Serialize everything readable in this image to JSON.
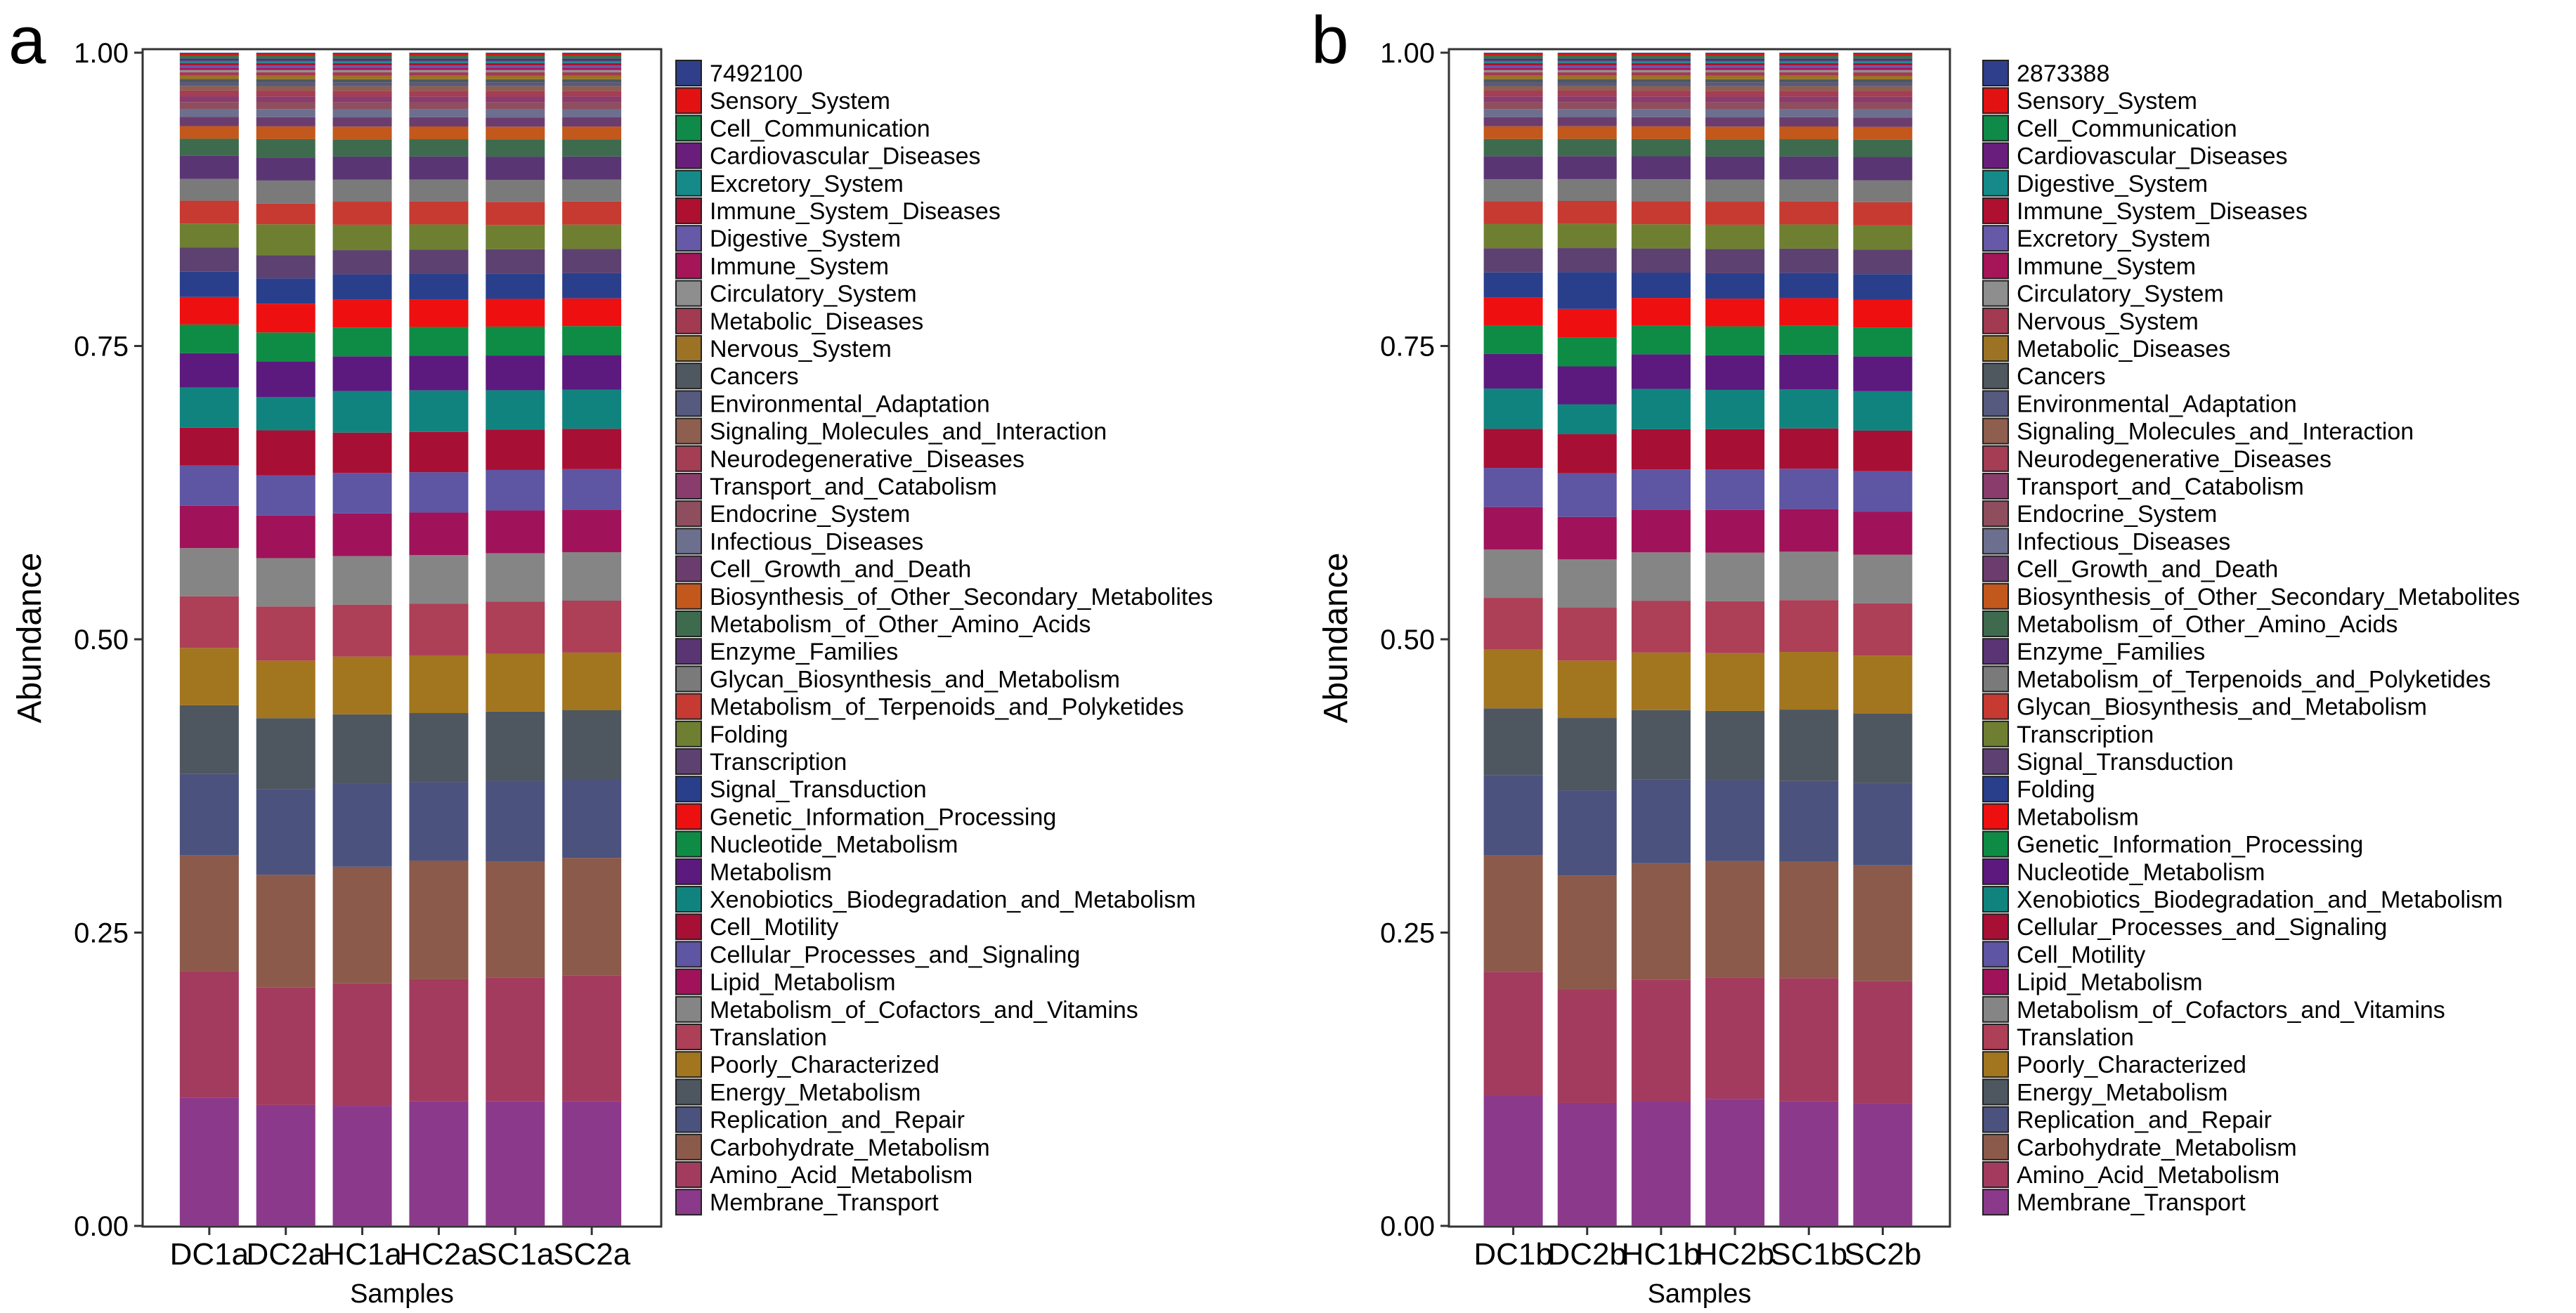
{
  "colors": [
    "#8B3A8B",
    "#A33B5E",
    "#8B5A4A",
    "#4B527E",
    "#4E5760",
    "#A2751F",
    "#AD3F57",
    "#858585",
    "#A0135A",
    "#5E55A3",
    "#A80F34",
    "#11837E",
    "#5C1A7E",
    "#0E8C45",
    "#EE1010",
    "#293F8C",
    "#5D4170",
    "#6E7F32",
    "#C63A32",
    "#7A7A7A",
    "#5A3574",
    "#3E6B4E",
    "#C2581C",
    "#6B3D6E",
    "#6C6F8E",
    "#8F4E5E",
    "#8A3C6C",
    "#A33E55",
    "#8E5E4E",
    "#565A7E",
    "#4F575F",
    "#9C7225",
    "#A23B51",
    "#8E8E8E",
    "#A51558",
    "#6559A8",
    "#B01030",
    "#158A88",
    "#6A1E7C",
    "#0F8A48",
    "#E31212",
    "#2F3F8A"
  ],
  "chart_data": [
    {
      "panel_label": "a",
      "type": "bar",
      "stacked": true,
      "xlabel": "Samples",
      "ylabel": "Abundance",
      "ylim": [
        0,
        1
      ],
      "yticks": [
        "0.00",
        "0.25",
        "0.50",
        "0.75",
        "1.00"
      ],
      "categories": [
        "DC1a",
        "DC2a",
        "HC1a",
        "HC2a",
        "SC1a",
        "SC2a"
      ],
      "series": [
        {
          "name": "Membrane_Transport",
          "values": [
            0.112,
            0.105,
            0.104,
            0.108,
            0.108,
            0.108
          ]
        },
        {
          "name": "Amino_Acid_Metabolism",
          "values": [
            0.11,
            0.102,
            0.106,
            0.106,
            0.107,
            0.109
          ]
        },
        {
          "name": "Carbohydrate_Metabolism",
          "values": [
            0.101,
            0.098,
            0.101,
            0.103,
            0.1,
            0.102
          ]
        },
        {
          "name": "Replication_and_Repair",
          "values": [
            0.071,
            0.074,
            0.072,
            0.068,
            0.07,
            0.068
          ]
        },
        {
          "name": "Energy_Metabolism",
          "values": [
            0.06,
            0.062,
            0.06,
            0.06,
            0.06,
            0.06
          ]
        },
        {
          "name": "Poorly_Characterized",
          "values": [
            0.05,
            0.05,
            0.05,
            0.05,
            0.05,
            0.05
          ]
        },
        {
          "name": "Translation",
          "values": [
            0.045,
            0.047,
            0.045,
            0.045,
            0.045,
            0.045
          ]
        },
        {
          "name": "Metabolism_of_Cofactors_and_Vitamins",
          "values": [
            0.042,
            0.042,
            0.042,
            0.042,
            0.042,
            0.042
          ]
        },
        {
          "name": "Lipid_Metabolism",
          "values": [
            0.037,
            0.037,
            0.037,
            0.037,
            0.037,
            0.037
          ]
        },
        {
          "name": "Cellular_Processes_and_Signaling",
          "values": [
            0.035,
            0.035,
            0.035,
            0.035,
            0.035,
            0.035
          ]
        },
        {
          "name": "Cell_Motility",
          "values": [
            0.033,
            0.039,
            0.035,
            0.035,
            0.035,
            0.035
          ]
        },
        {
          "name": "Xenobiotics_Biodegradation_and_Metabolism",
          "values": [
            0.035,
            0.029,
            0.036,
            0.036,
            0.034,
            0.034
          ]
        },
        {
          "name": "Metabolism",
          "values": [
            0.03,
            0.031,
            0.03,
            0.03,
            0.03,
            0.03
          ]
        },
        {
          "name": "Nucleotide_Metabolism",
          "values": [
            0.025,
            0.025,
            0.025,
            0.025,
            0.025,
            0.025
          ]
        },
        {
          "name": "Genetic_Information_Processing",
          "values": [
            0.024,
            0.025,
            0.024,
            0.024,
            0.024,
            0.024
          ]
        },
        {
          "name": "Signal_Transduction",
          "values": [
            0.022,
            0.022,
            0.022,
            0.022,
            0.022,
            0.022
          ]
        },
        {
          "name": "Transcription",
          "values": [
            0.021,
            0.02,
            0.021,
            0.021,
            0.021,
            0.021
          ]
        },
        {
          "name": "Folding",
          "values": [
            0.021,
            0.027,
            0.022,
            0.022,
            0.021,
            0.021
          ]
        },
        {
          "name": "Metabolism_of_Terpenoids_and_Polyketides",
          "values": [
            0.02,
            0.018,
            0.02,
            0.02,
            0.02,
            0.02
          ]
        },
        {
          "name": "Glycan_Biosynthesis_and_Metabolism",
          "values": [
            0.019,
            0.02,
            0.019,
            0.019,
            0.019,
            0.019
          ]
        },
        {
          "name": "Enzyme_Families",
          "values": [
            0.02,
            0.02,
            0.02,
            0.02,
            0.02,
            0.02
          ]
        },
        {
          "name": "Metabolism_of_Other_Amino_Acids",
          "values": [
            0.015,
            0.016,
            0.015,
            0.015,
            0.015,
            0.015
          ]
        },
        {
          "name": "Biosynthesis_of_Other_Secondary_Metabolites",
          "values": [
            0.011,
            0.011,
            0.011,
            0.011,
            0.011,
            0.011
          ]
        },
        {
          "name": "Cell_Growth_and_Death",
          "values": [
            0.008,
            0.008,
            0.008,
            0.008,
            0.008,
            0.008
          ]
        },
        {
          "name": "Infectious_Diseases",
          "values": [
            0.007,
            0.007,
            0.007,
            0.007,
            0.007,
            0.007
          ]
        },
        {
          "name": "Endocrine_System",
          "values": [
            0.006,
            0.006,
            0.006,
            0.006,
            0.006,
            0.006
          ]
        },
        {
          "name": "Transport_and_Catabolism",
          "values": [
            0.005,
            0.005,
            0.005,
            0.005,
            0.005,
            0.005
          ]
        },
        {
          "name": "Neurodegenerative_Diseases",
          "values": [
            0.005,
            0.005,
            0.005,
            0.005,
            0.005,
            0.005
          ]
        },
        {
          "name": "Signaling_Molecules_and_Interaction",
          "values": [
            0.004,
            0.004,
            0.004,
            0.004,
            0.004,
            0.004
          ]
        },
        {
          "name": "Environmental_Adaptation",
          "values": [
            0.003,
            0.003,
            0.003,
            0.003,
            0.003,
            0.003
          ]
        },
        {
          "name": "Cancers",
          "values": [
            0.003,
            0.003,
            0.003,
            0.003,
            0.003,
            0.003
          ]
        },
        {
          "name": "Nervous_System",
          "values": [
            0.003,
            0.003,
            0.003,
            0.003,
            0.003,
            0.003
          ]
        },
        {
          "name": "Metabolic_Diseases",
          "values": [
            0.003,
            0.003,
            0.003,
            0.003,
            0.003,
            0.003
          ]
        },
        {
          "name": "Circulatory_System",
          "values": [
            0.002,
            0.002,
            0.002,
            0.002,
            0.002,
            0.002
          ]
        },
        {
          "name": "Immune_System",
          "values": [
            0.002,
            0.002,
            0.002,
            0.002,
            0.002,
            0.002
          ]
        },
        {
          "name": "Digestive_System",
          "values": [
            0.002,
            0.002,
            0.002,
            0.002,
            0.002,
            0.002
          ]
        },
        {
          "name": "Immune_System_Diseases",
          "values": [
            0.002,
            0.002,
            0.002,
            0.002,
            0.002,
            0.002
          ]
        },
        {
          "name": "Excretory_System",
          "values": [
            0.002,
            0.002,
            0.002,
            0.002,
            0.002,
            0.002
          ]
        },
        {
          "name": "Cardiovascular_Diseases",
          "values": [
            0.002,
            0.002,
            0.002,
            0.002,
            0.002,
            0.002
          ]
        },
        {
          "name": "Cell_Communication",
          "values": [
            0.002,
            0.002,
            0.002,
            0.002,
            0.002,
            0.002
          ]
        },
        {
          "name": "Sensory_System",
          "values": [
            0.002,
            0.002,
            0.002,
            0.002,
            0.002,
            0.002
          ]
        },
        {
          "name": "7492100",
          "values": [
            0.001,
            0.001,
            0.001,
            0.001,
            0.001,
            0.001
          ]
        }
      ]
    },
    {
      "panel_label": "b",
      "type": "bar",
      "stacked": true,
      "xlabel": "Samples",
      "ylabel": "Abundance",
      "ylim": [
        0,
        1
      ],
      "yticks": [
        "0.00",
        "0.25",
        "0.50",
        "0.75",
        "1.00"
      ],
      "categories": [
        "DC1b",
        "DC2b",
        "HC1b",
        "HC2b",
        "SC1b",
        "SC2b"
      ],
      "series": [
        {
          "name": "Membrane_Transport",
          "values": [
            0.113,
            0.107,
            0.108,
            0.11,
            0.108,
            0.106
          ]
        },
        {
          "name": "Amino_Acid_Metabolism",
          "values": [
            0.108,
            0.099,
            0.106,
            0.105,
            0.107,
            0.105
          ]
        },
        {
          "name": "Carbohydrate_Metabolism",
          "values": [
            0.101,
            0.099,
            0.101,
            0.101,
            0.101,
            0.1
          ]
        },
        {
          "name": "Replication_and_Repair",
          "values": [
            0.07,
            0.074,
            0.073,
            0.07,
            0.07,
            0.071
          ]
        },
        {
          "name": "Energy_Metabolism",
          "values": [
            0.058,
            0.063,
            0.06,
            0.06,
            0.062,
            0.06
          ]
        },
        {
          "name": "Poorly_Characterized",
          "values": [
            0.051,
            0.05,
            0.05,
            0.05,
            0.05,
            0.05
          ]
        },
        {
          "name": "Translation",
          "values": [
            0.045,
            0.046,
            0.045,
            0.045,
            0.045,
            0.045
          ]
        },
        {
          "name": "Metabolism_of_Cofactors_and_Vitamins",
          "values": [
            0.042,
            0.042,
            0.042,
            0.042,
            0.042,
            0.042
          ]
        },
        {
          "name": "Lipid_Metabolism",
          "values": [
            0.037,
            0.037,
            0.037,
            0.037,
            0.037,
            0.037
          ]
        },
        {
          "name": "Cell_Motility",
          "values": [
            0.034,
            0.038,
            0.035,
            0.035,
            0.035,
            0.035
          ]
        },
        {
          "name": "Cellular_Processes_and_Signaling",
          "values": [
            0.034,
            0.034,
            0.035,
            0.035,
            0.035,
            0.035
          ]
        },
        {
          "name": "Xenobiotics_Biodegradation_and_Metabolism",
          "values": [
            0.035,
            0.026,
            0.035,
            0.034,
            0.034,
            0.034
          ]
        },
        {
          "name": "Nucleotide_Metabolism",
          "values": [
            0.03,
            0.033,
            0.03,
            0.03,
            0.03,
            0.03
          ]
        },
        {
          "name": "Genetic_Information_Processing",
          "values": [
            0.025,
            0.025,
            0.025,
            0.025,
            0.025,
            0.025
          ]
        },
        {
          "name": "Metabolism",
          "values": [
            0.024,
            0.025,
            0.024,
            0.024,
            0.024,
            0.024
          ]
        },
        {
          "name": "Folding",
          "values": [
            0.022,
            0.032,
            0.022,
            0.022,
            0.022,
            0.022
          ]
        },
        {
          "name": "Signal_Transduction",
          "values": [
            0.021,
            0.021,
            0.021,
            0.021,
            0.021,
            0.021
          ]
        },
        {
          "name": "Transcription",
          "values": [
            0.021,
            0.021,
            0.021,
            0.021,
            0.021,
            0.021
          ]
        },
        {
          "name": "Glycan_Biosynthesis_and_Metabolism",
          "values": [
            0.02,
            0.02,
            0.02,
            0.02,
            0.02,
            0.02
          ]
        },
        {
          "name": "Metabolism_of_Terpenoids_and_Polyketides",
          "values": [
            0.019,
            0.019,
            0.019,
            0.019,
            0.019,
            0.019
          ]
        },
        {
          "name": "Enzyme_Families",
          "values": [
            0.02,
            0.02,
            0.02,
            0.02,
            0.02,
            0.02
          ]
        },
        {
          "name": "Metabolism_of_Other_Amino_Acids",
          "values": [
            0.015,
            0.015,
            0.015,
            0.015,
            0.015,
            0.015
          ]
        },
        {
          "name": "Biosynthesis_of_Other_Secondary_Metabolites",
          "values": [
            0.011,
            0.011,
            0.011,
            0.011,
            0.011,
            0.011
          ]
        },
        {
          "name": "Cell_Growth_and_Death",
          "values": [
            0.008,
            0.008,
            0.008,
            0.008,
            0.008,
            0.008
          ]
        },
        {
          "name": "Infectious_Diseases",
          "values": [
            0.007,
            0.007,
            0.007,
            0.007,
            0.007,
            0.007
          ]
        },
        {
          "name": "Endocrine_System",
          "values": [
            0.006,
            0.006,
            0.006,
            0.006,
            0.006,
            0.006
          ]
        },
        {
          "name": "Transport_and_Catabolism",
          "values": [
            0.005,
            0.005,
            0.005,
            0.005,
            0.005,
            0.005
          ]
        },
        {
          "name": "Neurodegenerative_Diseases",
          "values": [
            0.005,
            0.005,
            0.005,
            0.005,
            0.005,
            0.005
          ]
        },
        {
          "name": "Signaling_Molecules_and_Interaction",
          "values": [
            0.004,
            0.004,
            0.004,
            0.004,
            0.004,
            0.004
          ]
        },
        {
          "name": "Environmental_Adaptation",
          "values": [
            0.003,
            0.003,
            0.003,
            0.003,
            0.003,
            0.003
          ]
        },
        {
          "name": "Cancers",
          "values": [
            0.003,
            0.003,
            0.003,
            0.003,
            0.003,
            0.003
          ]
        },
        {
          "name": "Metabolic_Diseases",
          "values": [
            0.003,
            0.003,
            0.003,
            0.003,
            0.003,
            0.003
          ]
        },
        {
          "name": "Nervous_System",
          "values": [
            0.003,
            0.003,
            0.003,
            0.003,
            0.003,
            0.003
          ]
        },
        {
          "name": "Circulatory_System",
          "values": [
            0.002,
            0.002,
            0.002,
            0.002,
            0.002,
            0.002
          ]
        },
        {
          "name": "Immune_System",
          "values": [
            0.002,
            0.002,
            0.002,
            0.002,
            0.002,
            0.002
          ]
        },
        {
          "name": "Excretory_System",
          "values": [
            0.002,
            0.002,
            0.002,
            0.002,
            0.002,
            0.002
          ]
        },
        {
          "name": "Immune_System_Diseases",
          "values": [
            0.002,
            0.002,
            0.002,
            0.002,
            0.002,
            0.002
          ]
        },
        {
          "name": "Digestive_System",
          "values": [
            0.002,
            0.002,
            0.002,
            0.002,
            0.002,
            0.002
          ]
        },
        {
          "name": "Cardiovascular_Diseases",
          "values": [
            0.002,
            0.002,
            0.002,
            0.002,
            0.002,
            0.002
          ]
        },
        {
          "name": "Cell_Communication",
          "values": [
            0.002,
            0.002,
            0.002,
            0.002,
            0.002,
            0.002
          ]
        },
        {
          "name": "Sensory_System",
          "values": [
            0.002,
            0.002,
            0.002,
            0.002,
            0.002,
            0.002
          ]
        },
        {
          "name": "2873388",
          "values": [
            0.001,
            0.001,
            0.001,
            0.001,
            0.001,
            0.001
          ]
        }
      ]
    }
  ]
}
